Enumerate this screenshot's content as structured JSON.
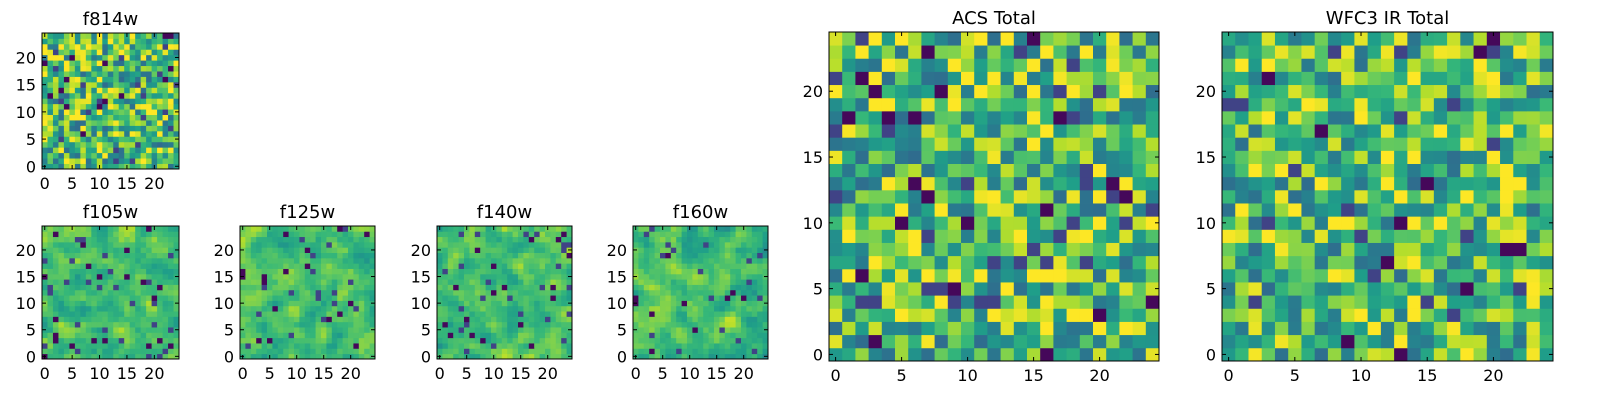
{
  "chart_data": [
    {
      "type": "heatmap",
      "title": "f814w",
      "xticks": [
        "0",
        "5",
        "10",
        "15",
        "20"
      ],
      "yticks": [
        "0",
        "5",
        "10",
        "15",
        "20"
      ],
      "xlim": [
        -0.5,
        24.5
      ],
      "ylim": [
        -0.5,
        24.5
      ],
      "grid_size": [
        25,
        25
      ],
      "colormap": "viridis",
      "value_range": [
        0,
        1
      ],
      "seed": 11,
      "smooth": 0
    },
    {
      "type": "heatmap",
      "title": "f105w",
      "xticks": [
        "0",
        "5",
        "10",
        "15",
        "20"
      ],
      "yticks": [
        "0",
        "5",
        "10",
        "15",
        "20"
      ],
      "xlim": [
        -0.5,
        24.5
      ],
      "ylim": [
        -0.5,
        24.5
      ],
      "grid_size": [
        25,
        25
      ],
      "colormap": "viridis",
      "value_range": [
        0,
        1
      ],
      "seed": 23,
      "smooth": 1
    },
    {
      "type": "heatmap",
      "title": "f125w",
      "xticks": [
        "0",
        "5",
        "10",
        "15",
        "20"
      ],
      "yticks": [
        "0",
        "5",
        "10",
        "15",
        "20"
      ],
      "xlim": [
        -0.5,
        24.5
      ],
      "ylim": [
        -0.5,
        24.5
      ],
      "grid_size": [
        25,
        25
      ],
      "colormap": "viridis",
      "value_range": [
        0,
        1
      ],
      "seed": 37,
      "smooth": 1
    },
    {
      "type": "heatmap",
      "title": "f140w",
      "xticks": [
        "0",
        "5",
        "10",
        "15",
        "20"
      ],
      "yticks": [
        "0",
        "5",
        "10",
        "15",
        "20"
      ],
      "xlim": [
        -0.5,
        24.5
      ],
      "ylim": [
        -0.5,
        24.5
      ],
      "grid_size": [
        25,
        25
      ],
      "colormap": "viridis",
      "value_range": [
        0,
        1
      ],
      "seed": 41,
      "smooth": 1
    },
    {
      "type": "heatmap",
      "title": "f160w",
      "xticks": [
        "0",
        "5",
        "10",
        "15",
        "20"
      ],
      "yticks": [
        "0",
        "5",
        "10",
        "15",
        "20"
      ],
      "xlim": [
        -0.5,
        24.5
      ],
      "ylim": [
        -0.5,
        24.5
      ],
      "grid_size": [
        25,
        25
      ],
      "colormap": "viridis",
      "value_range": [
        0,
        1
      ],
      "seed": 53,
      "smooth": 1
    },
    {
      "type": "heatmap",
      "title": "ACS Total",
      "xticks": [
        "0",
        "5",
        "10",
        "15",
        "20"
      ],
      "yticks": [
        "0",
        "5",
        "10",
        "15",
        "20"
      ],
      "xlim": [
        -0.5,
        24.5
      ],
      "ylim": [
        -0.5,
        24.5
      ],
      "grid_size": [
        25,
        25
      ],
      "colormap": "viridis",
      "value_range": [
        0,
        1
      ],
      "seed": 67,
      "smooth": 0
    },
    {
      "type": "heatmap",
      "title": "WFC3 IR Total",
      "xticks": [
        "0",
        "5",
        "10",
        "15",
        "20"
      ],
      "yticks": [
        "0",
        "5",
        "10",
        "15",
        "20"
      ],
      "xlim": [
        -0.5,
        24.5
      ],
      "ylim": [
        -0.5,
        24.5
      ],
      "grid_size": [
        25,
        25
      ],
      "colormap": "viridis",
      "value_range": [
        0,
        1
      ],
      "seed": 79,
      "smooth": 0
    }
  ],
  "colors": {
    "frame": "#000000",
    "background": "#ffffff"
  }
}
